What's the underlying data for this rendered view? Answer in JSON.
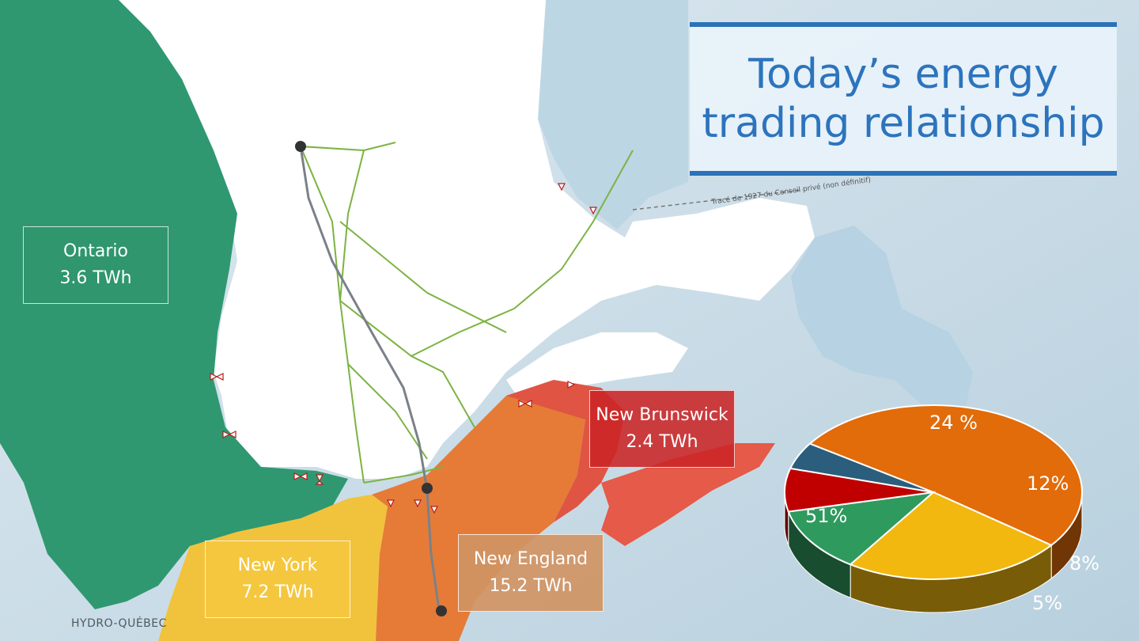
{
  "title": "Today’s energy trading relationship",
  "regions": {
    "ontario": {
      "name": "Ontario",
      "value": "3.6 TWh"
    },
    "new_brunswick": {
      "name": "New Brunswick",
      "value": "2.4 TWh"
    },
    "new_york": {
      "name": "New York",
      "value": "7.2 TWh"
    },
    "new_england": {
      "name": "New England",
      "value": "15.2 TWh"
    }
  },
  "map_annotation": "Tracé de 1927 du Conseil privé (non définitif)",
  "credit": "HYDRO-QUÉBEC",
  "chart_data": {
    "type": "pie",
    "slices": [
      {
        "label": "51%",
        "value": 51,
        "color": "#e26b0a"
      },
      {
        "label": "24 %",
        "value": 24,
        "color": "#f2b80f"
      },
      {
        "label": "12%",
        "value": 12,
        "color": "#2f9a5e"
      },
      {
        "label": "8%",
        "value": 8,
        "color": "#c00000"
      },
      {
        "label": "5%",
        "value": 5,
        "color": "#2b5d7c"
      }
    ]
  },
  "colors": {
    "ontario": "#2f9870",
    "quebec": "#ffffff",
    "new_brunswick_region": "#e05443",
    "new_york_region": "#f1c33c",
    "new_england_region": "#e57b37",
    "transmission": "#7cb342",
    "water": "#c9dbe6",
    "title": "#2c74bd"
  }
}
